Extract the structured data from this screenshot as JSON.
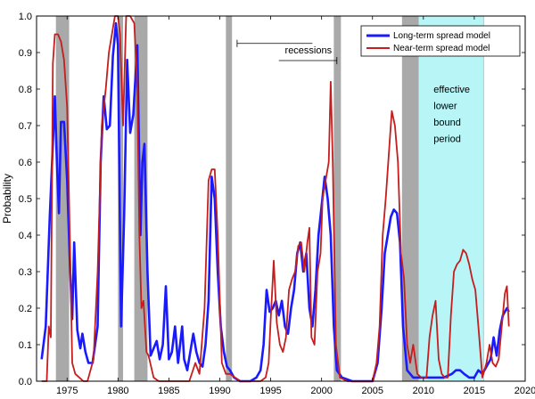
{
  "chart_data": {
    "type": "line",
    "ylabel": "Probability",
    "xlim": [
      1972,
      2020
    ],
    "ylim": [
      0,
      1.0
    ],
    "x_ticks": [
      1975,
      1980,
      1985,
      1990,
      1995,
      2000,
      2005,
      2010,
      2015,
      2020
    ],
    "y_ticks": [
      0,
      0.1,
      0.2,
      0.3,
      0.4,
      0.5,
      0.6,
      0.7,
      0.8,
      0.9,
      1.0
    ],
    "x_tick_labels": [
      "1975",
      "1980",
      "1985",
      "1990",
      "1995",
      "2000",
      "2005",
      "2010",
      "2015",
      "2020"
    ],
    "y_tick_labels": [
      "0.0",
      "0.1",
      "0.2",
      "0.3",
      "0.4",
      "0.5",
      "0.6",
      "0.7",
      "0.8",
      "0.9",
      "1.0"
    ],
    "grid": false,
    "legend_position": "top-right",
    "recessions": [
      [
        1973.9,
        1975.2
      ],
      [
        1980.0,
        1980.5
      ],
      [
        1981.6,
        1982.9
      ],
      [
        1990.6,
        1991.2
      ],
      [
        2001.2,
        2001.9
      ],
      [
        2007.9,
        2009.5
      ]
    ],
    "elb_period": [
      2009.5,
      2015.9
    ],
    "annotations": {
      "recessions_label": "recessions",
      "elb_lines": [
        "effective",
        "lower",
        "bound",
        "period"
      ]
    },
    "series": [
      {
        "name": "Long-term spread model",
        "color": "#1a1aff",
        "points": [
          [
            1972.5,
            0.06
          ],
          [
            1972.9,
            0.15
          ],
          [
            1973.3,
            0.45
          ],
          [
            1973.6,
            0.65
          ],
          [
            1973.8,
            0.78
          ],
          [
            1974.0,
            0.6
          ],
          [
            1974.2,
            0.46
          ],
          [
            1974.4,
            0.71
          ],
          [
            1974.7,
            0.71
          ],
          [
            1975.0,
            0.55
          ],
          [
            1975.3,
            0.3
          ],
          [
            1975.5,
            0.17
          ],
          [
            1975.7,
            0.38
          ],
          [
            1976.0,
            0.14
          ],
          [
            1976.3,
            0.09
          ],
          [
            1976.5,
            0.13
          ],
          [
            1976.8,
            0.08
          ],
          [
            1977.1,
            0.05
          ],
          [
            1977.5,
            0.05
          ],
          [
            1978.0,
            0.15
          ],
          [
            1978.3,
            0.6
          ],
          [
            1978.6,
            0.78
          ],
          [
            1978.9,
            0.69
          ],
          [
            1979.2,
            0.7
          ],
          [
            1979.5,
            0.89
          ],
          [
            1979.8,
            0.98
          ],
          [
            1980.0,
            0.92
          ],
          [
            1980.3,
            0.15
          ],
          [
            1980.6,
            0.45
          ],
          [
            1980.9,
            0.88
          ],
          [
            1981.2,
            0.68
          ],
          [
            1981.5,
            0.73
          ],
          [
            1981.9,
            0.92
          ],
          [
            1982.2,
            0.4
          ],
          [
            1982.4,
            0.6
          ],
          [
            1982.6,
            0.65
          ],
          [
            1982.9,
            0.3
          ],
          [
            1983.2,
            0.07
          ],
          [
            1983.5,
            0.09
          ],
          [
            1983.8,
            0.11
          ],
          [
            1984.1,
            0.06
          ],
          [
            1984.4,
            0.1
          ],
          [
            1984.7,
            0.26
          ],
          [
            1985.0,
            0.06
          ],
          [
            1985.3,
            0.08
          ],
          [
            1985.6,
            0.15
          ],
          [
            1985.9,
            0.05
          ],
          [
            1986.3,
            0.15
          ],
          [
            1986.5,
            0.06
          ],
          [
            1986.8,
            0.03
          ],
          [
            1987.1,
            0.08
          ],
          [
            1987.4,
            0.13
          ],
          [
            1987.7,
            0.08
          ],
          [
            1988.0,
            0.05
          ],
          [
            1988.3,
            0.04
          ],
          [
            1988.6,
            0.1
          ],
          [
            1988.9,
            0.22
          ],
          [
            1989.2,
            0.56
          ],
          [
            1989.5,
            0.5
          ],
          [
            1989.8,
            0.3
          ],
          [
            1990.1,
            0.15
          ],
          [
            1990.4,
            0.08
          ],
          [
            1990.7,
            0.04
          ],
          [
            1991.0,
            0.03
          ],
          [
            1991.4,
            0.01
          ],
          [
            1992.0,
            0.0
          ],
          [
            1993.0,
            0.0
          ],
          [
            1993.6,
            0.01
          ],
          [
            1994.0,
            0.03
          ],
          [
            1994.3,
            0.1
          ],
          [
            1994.6,
            0.25
          ],
          [
            1994.9,
            0.19
          ],
          [
            1995.2,
            0.2
          ],
          [
            1995.5,
            0.22
          ],
          [
            1995.8,
            0.18
          ],
          [
            1996.1,
            0.22
          ],
          [
            1996.4,
            0.15
          ],
          [
            1996.7,
            0.13
          ],
          [
            1997.0,
            0.2
          ],
          [
            1997.3,
            0.25
          ],
          [
            1997.6,
            0.35
          ],
          [
            1997.9,
            0.38
          ],
          [
            1998.2,
            0.3
          ],
          [
            1998.5,
            0.35
          ],
          [
            1998.8,
            0.2
          ],
          [
            1999.1,
            0.15
          ],
          [
            1999.4,
            0.25
          ],
          [
            1999.7,
            0.4
          ],
          [
            2000.0,
            0.48
          ],
          [
            2000.3,
            0.56
          ],
          [
            2000.6,
            0.5
          ],
          [
            2000.9,
            0.4
          ],
          [
            2001.2,
            0.15
          ],
          [
            2001.5,
            0.03
          ],
          [
            2002.0,
            0.01
          ],
          [
            2003.0,
            0.0
          ],
          [
            2004.0,
            0.0
          ],
          [
            2005.0,
            0.0
          ],
          [
            2005.5,
            0.05
          ],
          [
            2005.9,
            0.2
          ],
          [
            2006.2,
            0.35
          ],
          [
            2006.5,
            0.4
          ],
          [
            2006.8,
            0.45
          ],
          [
            2007.1,
            0.47
          ],
          [
            2007.4,
            0.46
          ],
          [
            2007.7,
            0.38
          ],
          [
            2008.0,
            0.15
          ],
          [
            2008.4,
            0.03
          ],
          [
            2009.0,
            0.01
          ],
          [
            2010.0,
            0.01
          ],
          [
            2011.0,
            0.01
          ],
          [
            2012.0,
            0.01
          ],
          [
            2012.8,
            0.02
          ],
          [
            2013.2,
            0.03
          ],
          [
            2013.6,
            0.03
          ],
          [
            2014.0,
            0.02
          ],
          [
            2014.5,
            0.01
          ],
          [
            2015.0,
            0.01
          ],
          [
            2015.4,
            0.03
          ],
          [
            2015.8,
            0.02
          ],
          [
            2016.2,
            0.04
          ],
          [
            2016.6,
            0.06
          ],
          [
            2016.9,
            0.12
          ],
          [
            2017.2,
            0.07
          ],
          [
            2017.5,
            0.14
          ],
          [
            2017.8,
            0.18
          ],
          [
            2018.2,
            0.2
          ],
          [
            2018.4,
            0.19
          ]
        ]
      },
      {
        "name": "Near-term spread model",
        "color": "#c41e1e",
        "points": [
          [
            1972.5,
            0.0
          ],
          [
            1973.0,
            0.0
          ],
          [
            1973.2,
            0.15
          ],
          [
            1973.4,
            0.12
          ],
          [
            1973.6,
            0.87
          ],
          [
            1973.8,
            0.95
          ],
          [
            1974.1,
            0.95
          ],
          [
            1974.4,
            0.93
          ],
          [
            1974.7,
            0.88
          ],
          [
            1975.0,
            0.75
          ],
          [
            1975.3,
            0.35
          ],
          [
            1975.5,
            0.05
          ],
          [
            1975.8,
            0.02
          ],
          [
            1976.2,
            0.01
          ],
          [
            1976.6,
            0.0
          ],
          [
            1977.0,
            0.0
          ],
          [
            1977.6,
            0.06
          ],
          [
            1978.0,
            0.3
          ],
          [
            1978.4,
            0.7
          ],
          [
            1978.8,
            0.8
          ],
          [
            1979.1,
            0.9
          ],
          [
            1979.4,
            0.95
          ],
          [
            1979.7,
            1.0
          ],
          [
            1980.0,
            1.0
          ],
          [
            1980.2,
            0.95
          ],
          [
            1980.5,
            0.7
          ],
          [
            1980.8,
            1.0
          ],
          [
            1981.2,
            1.0
          ],
          [
            1981.6,
            0.98
          ],
          [
            1981.9,
            0.8
          ],
          [
            1982.1,
            0.4
          ],
          [
            1982.3,
            0.2
          ],
          [
            1982.5,
            0.22
          ],
          [
            1982.8,
            0.08
          ],
          [
            1983.0,
            0.07
          ],
          [
            1983.5,
            0.01
          ],
          [
            1984.0,
            0.0
          ],
          [
            1985.0,
            0.0
          ],
          [
            1986.0,
            0.0
          ],
          [
            1987.0,
            0.0
          ],
          [
            1987.6,
            0.05
          ],
          [
            1988.0,
            0.02
          ],
          [
            1988.5,
            0.2
          ],
          [
            1988.9,
            0.55
          ],
          [
            1989.2,
            0.58
          ],
          [
            1989.5,
            0.58
          ],
          [
            1989.8,
            0.4
          ],
          [
            1990.2,
            0.05
          ],
          [
            1990.6,
            0.02
          ],
          [
            1991.0,
            0.02
          ],
          [
            1991.5,
            0.01
          ],
          [
            1992.0,
            0.0
          ],
          [
            1993.0,
            0.0
          ],
          [
            1994.0,
            0.0
          ],
          [
            1994.5,
            0.01
          ],
          [
            1994.8,
            0.05
          ],
          [
            1995.0,
            0.17
          ],
          [
            1995.3,
            0.33
          ],
          [
            1995.6,
            0.16
          ],
          [
            1995.9,
            0.1
          ],
          [
            1996.2,
            0.08
          ],
          [
            1996.5,
            0.12
          ],
          [
            1996.8,
            0.25
          ],
          [
            1997.1,
            0.28
          ],
          [
            1997.4,
            0.3
          ],
          [
            1997.7,
            0.37
          ],
          [
            1998.0,
            0.38
          ],
          [
            1998.3,
            0.3
          ],
          [
            1998.6,
            0.38
          ],
          [
            1998.8,
            0.42
          ],
          [
            1999.0,
            0.12
          ],
          [
            1999.3,
            0.1
          ],
          [
            1999.6,
            0.3
          ],
          [
            1999.9,
            0.35
          ],
          [
            2000.1,
            0.5
          ],
          [
            2000.4,
            0.55
          ],
          [
            2000.7,
            0.6
          ],
          [
            2000.9,
            0.82
          ],
          [
            2001.1,
            0.6
          ],
          [
            2001.4,
            0.1
          ],
          [
            2001.8,
            0.01
          ],
          [
            2002.5,
            0.0
          ],
          [
            2003.5,
            0.0
          ],
          [
            2004.5,
            0.0
          ],
          [
            2005.0,
            0.0
          ],
          [
            2005.4,
            0.05
          ],
          [
            2005.7,
            0.15
          ],
          [
            2006.0,
            0.4
          ],
          [
            2006.3,
            0.5
          ],
          [
            2006.6,
            0.62
          ],
          [
            2006.9,
            0.74
          ],
          [
            2007.2,
            0.7
          ],
          [
            2007.5,
            0.6
          ],
          [
            2007.8,
            0.35
          ],
          [
            2008.1,
            0.28
          ],
          [
            2008.4,
            0.1
          ],
          [
            2008.7,
            0.05
          ],
          [
            2009.0,
            0.1
          ],
          [
            2009.4,
            0.02
          ],
          [
            2009.8,
            0.01
          ],
          [
            2010.3,
            0.01
          ],
          [
            2010.6,
            0.12
          ],
          [
            2010.9,
            0.18
          ],
          [
            2011.2,
            0.22
          ],
          [
            2011.5,
            0.06
          ],
          [
            2011.8,
            0.02
          ],
          [
            2012.1,
            0.01
          ],
          [
            2012.4,
            0.01
          ],
          [
            2012.7,
            0.18
          ],
          [
            2013.0,
            0.3
          ],
          [
            2013.3,
            0.32
          ],
          [
            2013.6,
            0.33
          ],
          [
            2013.9,
            0.36
          ],
          [
            2014.2,
            0.35
          ],
          [
            2014.5,
            0.32
          ],
          [
            2014.8,
            0.28
          ],
          [
            2015.1,
            0.25
          ],
          [
            2015.4,
            0.15
          ],
          [
            2015.8,
            0.01
          ],
          [
            2016.2,
            0.05
          ],
          [
            2016.5,
            0.1
          ],
          [
            2016.8,
            0.05
          ],
          [
            2017.1,
            0.04
          ],
          [
            2017.4,
            0.06
          ],
          [
            2017.7,
            0.15
          ],
          [
            2018.0,
            0.24
          ],
          [
            2018.2,
            0.26
          ],
          [
            2018.4,
            0.15
          ]
        ]
      }
    ]
  }
}
